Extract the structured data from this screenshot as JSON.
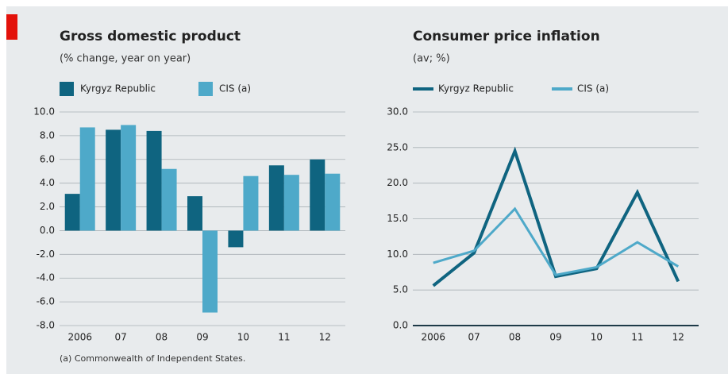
{
  "chart_data": [
    {
      "type": "bar",
      "title": "Gross domestic product",
      "subtitle": "(% change, year on year)",
      "categories": [
        "2006",
        "07",
        "08",
        "09",
        "10",
        "11",
        "12"
      ],
      "series": [
        {
          "name": "Kyrgyz Republic",
          "color": "#0f6480",
          "values": [
            3.1,
            8.5,
            8.4,
            2.9,
            -1.4,
            5.5,
            6.0
          ]
        },
        {
          "name": "CIS (a)",
          "color": "#4ea9c9",
          "values": [
            8.7,
            8.9,
            5.2,
            -6.9,
            4.6,
            4.7,
            4.8
          ]
        }
      ],
      "ylim": [
        -8,
        10
      ],
      "yticks": [
        {
          "value": -8,
          "label": "-8.0"
        },
        {
          "value": -6,
          "label": "-6.0"
        },
        {
          "value": -4,
          "label": "-4.0"
        },
        {
          "value": -2,
          "label": "-2.0"
        },
        {
          "value": 0,
          "label": "0.0"
        },
        {
          "value": 2,
          "label": "2.0"
        },
        {
          "value": 4,
          "label": "4.0"
        },
        {
          "value": 6,
          "label": "6.0"
        },
        {
          "value": 8,
          "label": "8.0"
        },
        {
          "value": 10,
          "label": "10.0"
        }
      ],
      "grid": true
    },
    {
      "type": "line",
      "title": "Consumer price inflation",
      "subtitle": "(av; %)",
      "categories": [
        "2006",
        "07",
        "08",
        "09",
        "10",
        "11",
        "12"
      ],
      "series": [
        {
          "name": "Kyrgyz Republic",
          "color": "#0f6480",
          "values": [
            5.6,
            10.2,
            24.5,
            6.9,
            8.0,
            18.7,
            6.2
          ]
        },
        {
          "name": "CIS (a)",
          "color": "#4ea9c9",
          "values": [
            8.8,
            10.5,
            16.4,
            7.1,
            8.2,
            11.7,
            8.3
          ]
        }
      ],
      "ylim": [
        0,
        30
      ],
      "yticks": [
        {
          "value": 0,
          "label": "0.0"
        },
        {
          "value": 5,
          "label": "5.0"
        },
        {
          "value": 10,
          "label": "10.0"
        },
        {
          "value": 15,
          "label": "15.0"
        },
        {
          "value": 20,
          "label": "20.0"
        },
        {
          "value": 25,
          "label": "25.0"
        },
        {
          "value": 30,
          "label": "30.0"
        }
      ],
      "grid": true
    }
  ],
  "footnote": "(a) Commonwealth of Independent States."
}
